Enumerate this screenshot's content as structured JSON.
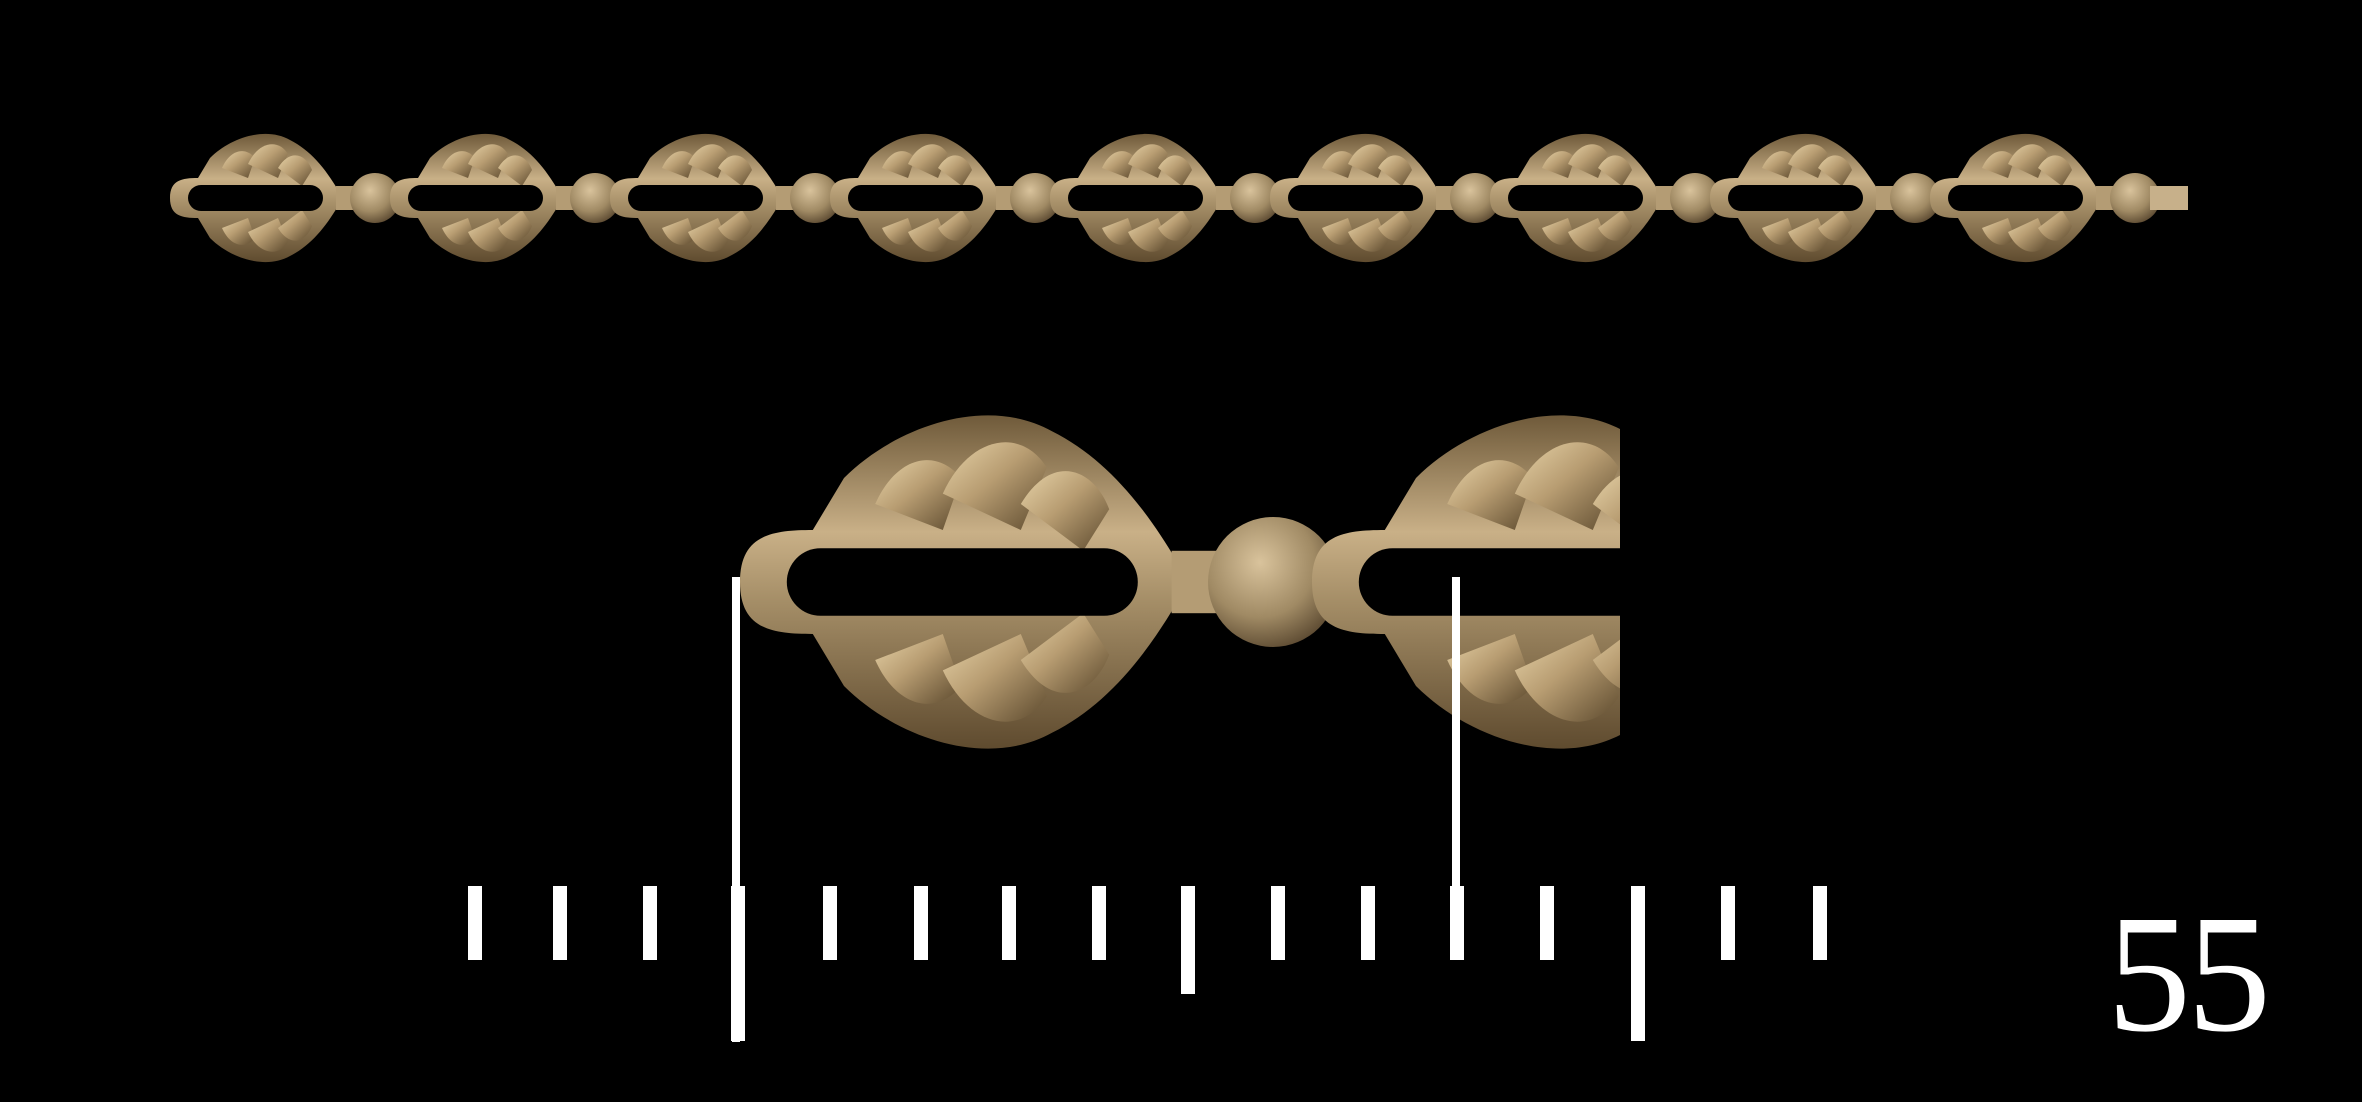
{
  "item": {
    "catalog_number": "55",
    "subject": "ribbed-leaf-link-chain",
    "chain_link_count": 9
  },
  "colors": {
    "background": "#000000",
    "metal_base": "#a8916b",
    "metal_light": "#e6d0a4",
    "metal_shadow": "#6a5536",
    "marks": "#ffffff"
  }
}
